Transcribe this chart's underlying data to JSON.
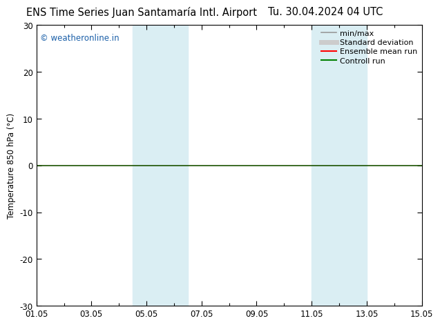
{
  "title_left": "ENS Time Series Juan Santamaría Intl. Airport",
  "title_right": "Tu. 30.04.2024 04 UTC",
  "ylabel": "Temperature 850 hPa (°C)",
  "ylim": [
    -30,
    30
  ],
  "yticks": [
    -30,
    -20,
    -10,
    0,
    10,
    20,
    30
  ],
  "xtick_labels": [
    "01.05",
    "03.05",
    "05.05",
    "07.05",
    "09.05",
    "11.05",
    "13.05",
    "15.05"
  ],
  "xtick_positions": [
    0,
    2,
    4,
    6,
    8,
    10,
    12,
    14
  ],
  "xlim": [
    0,
    14
  ],
  "watermark": "© weatheronline.in",
  "shaded_bands": [
    {
      "x_start": 3.5,
      "x_end": 5.5
    },
    {
      "x_start": 10.0,
      "x_end": 12.0
    }
  ],
  "shaded_color": "#daeef3",
  "legend_entries": [
    {
      "label": "min/max",
      "color": "#999999",
      "lw": 1.2
    },
    {
      "label": "Standard deviation",
      "color": "#cccccc",
      "lw": 5
    },
    {
      "label": "Ensemble mean run",
      "color": "#ff0000",
      "lw": 1.5
    },
    {
      "label": "Controll run",
      "color": "#008000",
      "lw": 1.5
    }
  ],
  "zero_line_color": "#1a5200",
  "zero_line_lw": 1.2,
  "background_color": "#ffffff",
  "plot_bg_color": "#ffffff",
  "spine_color": "#000000",
  "title_fontsize": 10.5,
  "axis_fontsize": 8.5,
  "watermark_color": "#1a5fa8",
  "watermark_fontsize": 8.5,
  "legend_fontsize": 8
}
